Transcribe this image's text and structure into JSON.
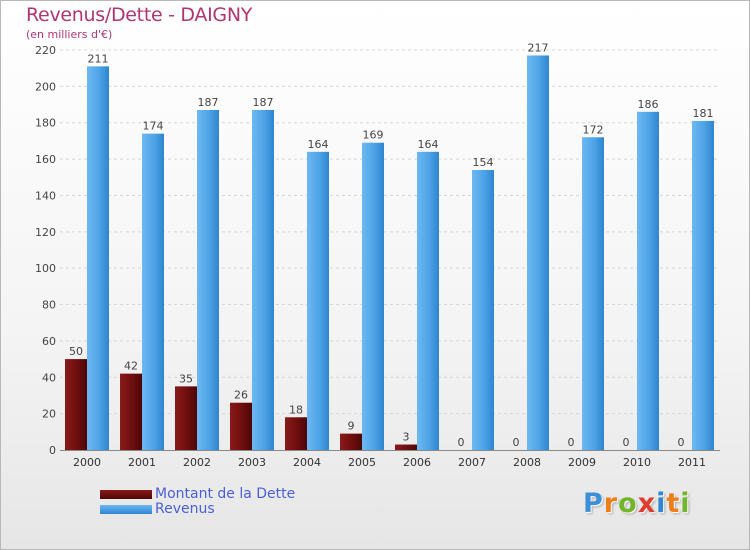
{
  "title": "Revenus/Dette - DAIGNY",
  "subtitle": "(en milliers d'€)",
  "legend": [
    {
      "label": "Montant de la Dette",
      "color": "#6e0e0e"
    },
    {
      "label": "Revenus",
      "color": "#4da3e6"
    }
  ],
  "logo": {
    "letters": [
      {
        "char": "P",
        "color": "#3d8fd8"
      },
      {
        "char": "r",
        "color": "#ef7d1a"
      },
      {
        "char": "o",
        "color": "#72b52b"
      },
      {
        "char": "x",
        "color": "#e23a2c"
      },
      {
        "char": "i",
        "color": "#2f86d2"
      },
      {
        "char": "t",
        "color": "#ef7d1a"
      },
      {
        "char": "i",
        "color": "#72b52b"
      }
    ]
  },
  "chart_data": {
    "type": "bar",
    "title": "Revenus/Dette - DAIGNY",
    "subtitle": "(en milliers d'€)",
    "categories": [
      "2000",
      "2001",
      "2002",
      "2003",
      "2004",
      "2005",
      "2006",
      "2007",
      "2008",
      "2009",
      "2010",
      "2011"
    ],
    "series": [
      {
        "name": "Montant de la Dette",
        "color": "#6e0e0e",
        "values": [
          50,
          42,
          35,
          26,
          18,
          9,
          3,
          0,
          0,
          0,
          0,
          0
        ]
      },
      {
        "name": "Revenus",
        "color": "#4da3e6",
        "values": [
          211,
          174,
          187,
          187,
          164,
          169,
          164,
          154,
          217,
          172,
          186,
          181
        ]
      }
    ],
    "ylim": [
      0,
      220
    ],
    "yticks": [
      0,
      20,
      40,
      60,
      80,
      100,
      120,
      140,
      160,
      180,
      200,
      220
    ],
    "grid": true,
    "legend_position": "bottom-left",
    "data_labels": true
  }
}
